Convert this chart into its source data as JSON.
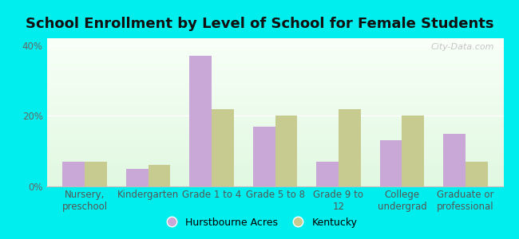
{
  "title": "School Enrollment by Level of School for Female Students",
  "categories": [
    "Nursery,\npreschool",
    "Kindergarten",
    "Grade 1 to 4",
    "Grade 5 to 8",
    "Grade 9 to\n12",
    "College\nundergrad",
    "Graduate or\nprofessional"
  ],
  "hurstbourne_acres": [
    7,
    5,
    37,
    17,
    7,
    13,
    15
  ],
  "kentucky": [
    7,
    6,
    22,
    20,
    22,
    20,
    7
  ],
  "bar_color_ha": "#c9a8d8",
  "bar_color_ky": "#c8cb90",
  "background_color": "#00eeee",
  "ylim": [
    0,
    42
  ],
  "yticks": [
    0,
    20,
    40
  ],
  "ytick_labels": [
    "0%",
    "20%",
    "40%"
  ],
  "legend_ha": "Hurstbourne Acres",
  "legend_ky": "Kentucky",
  "watermark": "City-Data.com",
  "title_fontsize": 13,
  "tick_fontsize": 8.5,
  "legend_fontsize": 9
}
